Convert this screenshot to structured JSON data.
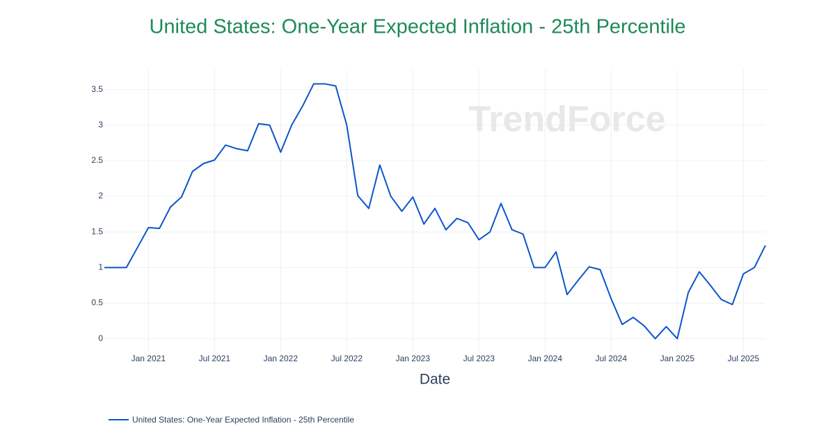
{
  "chart_data": {
    "type": "line",
    "title": "United States: One-Year Expected Inflation - 25th Percentile",
    "watermark": "TrendForce",
    "x_label": "Date",
    "x": [
      "2020-09",
      "2020-10",
      "2020-11",
      "2020-12",
      "2021-01",
      "2021-02",
      "2021-03",
      "2021-04",
      "2021-05",
      "2021-06",
      "2021-07",
      "2021-08",
      "2021-09",
      "2021-10",
      "2021-11",
      "2021-12",
      "2022-01",
      "2022-02",
      "2022-03",
      "2022-04",
      "2022-05",
      "2022-06",
      "2022-07",
      "2022-08",
      "2022-09",
      "2022-10",
      "2022-11",
      "2022-12",
      "2023-01",
      "2023-02",
      "2023-03",
      "2023-04",
      "2023-05",
      "2023-06",
      "2023-07",
      "2023-08",
      "2023-09",
      "2023-10",
      "2023-11",
      "2023-12",
      "2024-01",
      "2024-02",
      "2024-03",
      "2024-04",
      "2024-05",
      "2024-06",
      "2024-07",
      "2024-08",
      "2024-09",
      "2024-10",
      "2024-11",
      "2024-12",
      "2025-01",
      "2025-02",
      "2025-03",
      "2025-04",
      "2025-05",
      "2025-06",
      "2025-07",
      "2025-08",
      "2025-09"
    ],
    "series": [
      {
        "name": "United States: One-Year Expected Inflation - 25th Percentile",
        "color": "#0b55c9",
        "values": [
          1.0,
          1.0,
          1.0,
          1.28,
          1.56,
          1.55,
          1.85,
          1.99,
          2.35,
          2.46,
          2.51,
          2.72,
          2.67,
          2.64,
          3.02,
          3.0,
          2.62,
          3.0,
          3.27,
          3.58,
          3.58,
          3.55,
          3.0,
          2.01,
          1.83,
          2.44,
          2.0,
          1.79,
          1.99,
          1.61,
          1.83,
          1.53,
          1.69,
          1.63,
          1.39,
          1.5,
          1.9,
          1.53,
          1.47,
          1.0,
          1.0,
          1.22,
          0.62,
          0.82,
          1.01,
          0.97,
          0.56,
          0.2,
          0.3,
          0.18,
          0.0,
          0.17,
          0.0,
          0.65,
          0.94,
          0.75,
          0.55,
          0.48,
          0.91,
          1.0,
          1.31
        ]
      }
    ],
    "xlim": [
      "2020-09",
      "2025-09"
    ],
    "xticks": [
      {
        "value": "2021-01",
        "label": "Jan 2021"
      },
      {
        "value": "2021-07",
        "label": "Jul 2021"
      },
      {
        "value": "2022-01",
        "label": "Jan 2022"
      },
      {
        "value": "2022-07",
        "label": "Jul 2022"
      },
      {
        "value": "2023-01",
        "label": "Jan 2023"
      },
      {
        "value": "2023-07",
        "label": "Jul 2023"
      },
      {
        "value": "2024-01",
        "label": "Jan 2024"
      },
      {
        "value": "2024-07",
        "label": "Jul 2024"
      },
      {
        "value": "2025-01",
        "label": "Jan 2025"
      },
      {
        "value": "2025-07",
        "label": "Jul 2025"
      }
    ],
    "ylim": [
      -0.18,
      3.78
    ],
    "yticks": [
      0,
      0.5,
      1,
      1.5,
      2,
      2.5,
      3,
      3.5
    ],
    "grid": true
  }
}
